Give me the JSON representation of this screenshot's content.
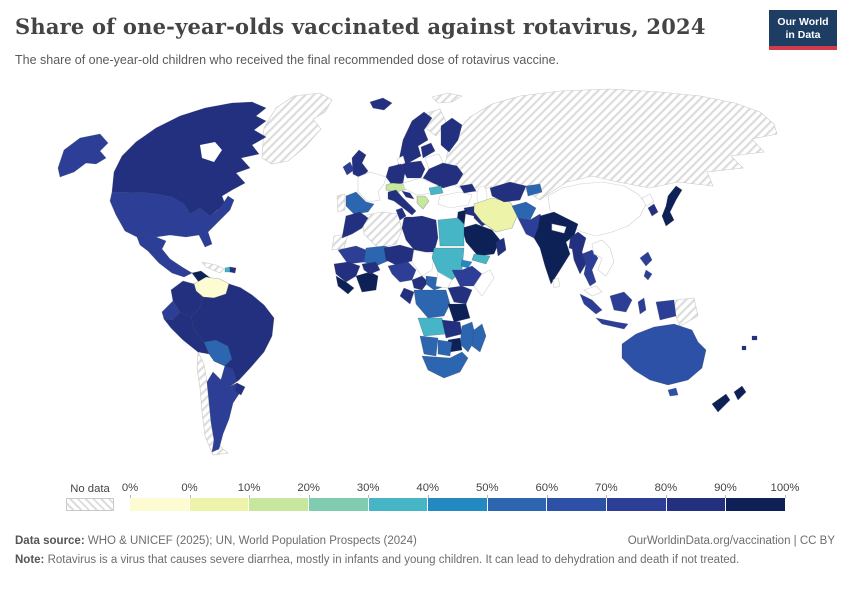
{
  "header": {
    "title": "Share of one-year-olds vaccinated against rotavirus, 2024",
    "subtitle": "The share of one-year-old children who received the final recommended dose of rotavirus vaccine.",
    "logo": {
      "line1": "Our World",
      "line2": "in Data",
      "bg_color": "#1d3d63",
      "accent_color": "#d13b4b"
    }
  },
  "legend": {
    "no_data_label": "No data",
    "tick_labels": [
      "0%",
      "0%",
      "10%",
      "20%",
      "30%",
      "40%",
      "50%",
      "60%",
      "70%",
      "80%",
      "90%",
      "100%"
    ],
    "bin_colors": [
      "#fdfbd1",
      "#edf4a9",
      "#c7e79e",
      "#7fccb1",
      "#46b6c6",
      "#2589c1",
      "#2c66b0",
      "#2d51a6",
      "#2d3e96",
      "#23307f",
      "#0d2157"
    ]
  },
  "chart_data": {
    "type": "heatmap",
    "subtype": "choropleth-world-map",
    "title": "Share of one-year-olds vaccinated against rotavirus, 2024",
    "legend_position": "bottom",
    "value_range_percent": [
      0,
      100
    ],
    "bins": [
      "0%",
      "0-10%",
      "10-20%",
      "20-30%",
      "30-40%",
      "40-50%",
      "50-60%",
      "60-70%",
      "70-80%",
      "80-90%",
      "90-100%"
    ]
  },
  "map": {
    "regions": [
      {
        "id": "greenland",
        "bin": "no_data"
      },
      {
        "id": "svalbard",
        "bin": "no_data"
      },
      {
        "id": "russia-central-asia",
        "bin": "no_data"
      },
      {
        "id": "sweden-north",
        "bin": "no_data"
      },
      {
        "id": "portugal",
        "bin": "no_data"
      },
      {
        "id": "algeria",
        "bin": "no_data"
      },
      {
        "id": "western-sahara",
        "bin": "no_data"
      },
      {
        "id": "cuba",
        "bin": "no_data"
      },
      {
        "id": "chile",
        "bin": "no_data"
      },
      {
        "id": "papua-new-guinea",
        "bin": "no_data"
      },
      {
        "id": "france",
        "bin": "white"
      },
      {
        "id": "denmark",
        "bin": "white"
      },
      {
        "id": "belarus",
        "bin": "white"
      },
      {
        "id": "central-europe",
        "bin": "white"
      },
      {
        "id": "turkey",
        "bin": "white"
      },
      {
        "id": "china",
        "bin": "white"
      },
      {
        "id": "north-korea",
        "bin": "white"
      },
      {
        "id": "chad",
        "bin": "white"
      },
      {
        "id": "south-sudan",
        "bin": "white"
      },
      {
        "id": "somalia",
        "bin": "white"
      },
      {
        "id": "nepal",
        "bin": "white"
      },
      {
        "id": "sri-lanka",
        "bin": "white"
      },
      {
        "id": "laos-vietnam",
        "bin": "white"
      },
      {
        "id": "malaysia",
        "bin": "white"
      },
      {
        "id": "venezuela",
        "bin": 0
      },
      {
        "id": "iran",
        "bin": 1
      },
      {
        "id": "switzerland-austria",
        "bin": 2
      },
      {
        "id": "greece",
        "bin": 2
      },
      {
        "id": "bulgaria",
        "bin": 4
      },
      {
        "id": "egypt",
        "bin": 4
      },
      {
        "id": "sudan",
        "bin": 4
      },
      {
        "id": "angola",
        "bin": 4
      },
      {
        "id": "yemen",
        "bin": 4
      },
      {
        "id": "haiti",
        "bin": 4
      },
      {
        "id": "eritrea",
        "bin": 5
      },
      {
        "id": "spain",
        "bin": 6
      },
      {
        "id": "mali",
        "bin": 6
      },
      {
        "id": "car",
        "bin": 6
      },
      {
        "id": "drc",
        "bin": 6
      },
      {
        "id": "bolivia",
        "bin": 6
      },
      {
        "id": "afghanistan",
        "bin": 6
      },
      {
        "id": "kyrgyz-tajik",
        "bin": 6
      },
      {
        "id": "namibia",
        "bin": 6
      },
      {
        "id": "botswana",
        "bin": 6
      },
      {
        "id": "south-africa",
        "bin": 6
      },
      {
        "id": "mozambique",
        "bin": 6
      },
      {
        "id": "madagascar",
        "bin": 6
      },
      {
        "id": "australia",
        "bin": 7
      },
      {
        "id": "tasmania",
        "bin": 7
      },
      {
        "id": "alaska",
        "bin": 8
      },
      {
        "id": "usa",
        "bin": 8
      },
      {
        "id": "mexico",
        "bin": 8
      },
      {
        "id": "ecuador",
        "bin": 8
      },
      {
        "id": "paraguay",
        "bin": 8
      },
      {
        "id": "argentina",
        "bin": 8
      },
      {
        "id": "ireland",
        "bin": 8
      },
      {
        "id": "mauritania",
        "bin": 8
      },
      {
        "id": "nigeria",
        "bin": 8
      },
      {
        "id": "ethiopia",
        "bin": 8
      },
      {
        "id": "pakistan",
        "bin": 8
      },
      {
        "id": "thailand",
        "bin": 8
      },
      {
        "id": "indonesia",
        "bin": 8
      },
      {
        "id": "philippines",
        "bin": 8
      },
      {
        "id": "canada",
        "bin": 9
      },
      {
        "id": "iceland",
        "bin": 9
      },
      {
        "id": "norway",
        "bin": 9
      },
      {
        "id": "finland",
        "bin": 9
      },
      {
        "id": "uk",
        "bin": 9
      },
      {
        "id": "germany",
        "bin": 9
      },
      {
        "id": "poland",
        "bin": 9
      },
      {
        "id": "baltics",
        "bin": 9
      },
      {
        "id": "ukraine",
        "bin": 9
      },
      {
        "id": "italy",
        "bin": 9
      },
      {
        "id": "croatia",
        "bin": 9
      },
      {
        "id": "morocco",
        "bin": 9
      },
      {
        "id": "tunisia",
        "bin": 9
      },
      {
        "id": "libya",
        "bin": 9
      },
      {
        "id": "niger",
        "bin": 9
      },
      {
        "id": "senegal",
        "bin": 9
      },
      {
        "id": "burkina",
        "bin": 9
      },
      {
        "id": "cameroon",
        "bin": 9
      },
      {
        "id": "gabon-congo",
        "bin": 9
      },
      {
        "id": "uganda-kenya",
        "bin": 9
      },
      {
        "id": "zambia",
        "bin": 9
      },
      {
        "id": "dominican-republic",
        "bin": 9
      },
      {
        "id": "colombia",
        "bin": 9
      },
      {
        "id": "peru",
        "bin": 9
      },
      {
        "id": "brazil",
        "bin": 9
      },
      {
        "id": "uruguay",
        "bin": 9
      },
      {
        "id": "syria",
        "bin": 9
      },
      {
        "id": "iraq",
        "bin": 9
      },
      {
        "id": "oman",
        "bin": 9
      },
      {
        "id": "caucasus",
        "bin": 9
      },
      {
        "id": "turkmen-uzbek",
        "bin": 9
      },
      {
        "id": "myanmar",
        "bin": 9
      },
      {
        "id": "south-korea",
        "bin": 9
      },
      {
        "id": "bangladesh",
        "bin": 9
      },
      {
        "id": "fiji",
        "bin": 9
      },
      {
        "id": "vanuatu",
        "bin": 9
      },
      {
        "id": "central-america",
        "bin": 10
      },
      {
        "id": "guyana",
        "bin": 10
      },
      {
        "id": "guinea-sierra",
        "bin": 10
      },
      {
        "id": "cote-ghana",
        "bin": 10
      },
      {
        "id": "tanzania",
        "bin": 10
      },
      {
        "id": "zimbabwe",
        "bin": 10
      },
      {
        "id": "israel-jordan",
        "bin": 10
      },
      {
        "id": "saudi-arabia",
        "bin": 10
      },
      {
        "id": "india",
        "bin": 10
      },
      {
        "id": "japan",
        "bin": 10
      },
      {
        "id": "new-zealand",
        "bin": 10
      }
    ]
  },
  "footer": {
    "source_label": "Data source:",
    "source_text": " WHO & UNICEF (2025); UN, World Population Prospects (2024)",
    "link_text": "OurWorldinData.org/vaccination | CC BY",
    "note_label": "Note:",
    "note_text": " Rotavirus is a virus that causes severe diarrhea, mostly in infants and young children. It can lead to dehydration and death if not treated."
  }
}
